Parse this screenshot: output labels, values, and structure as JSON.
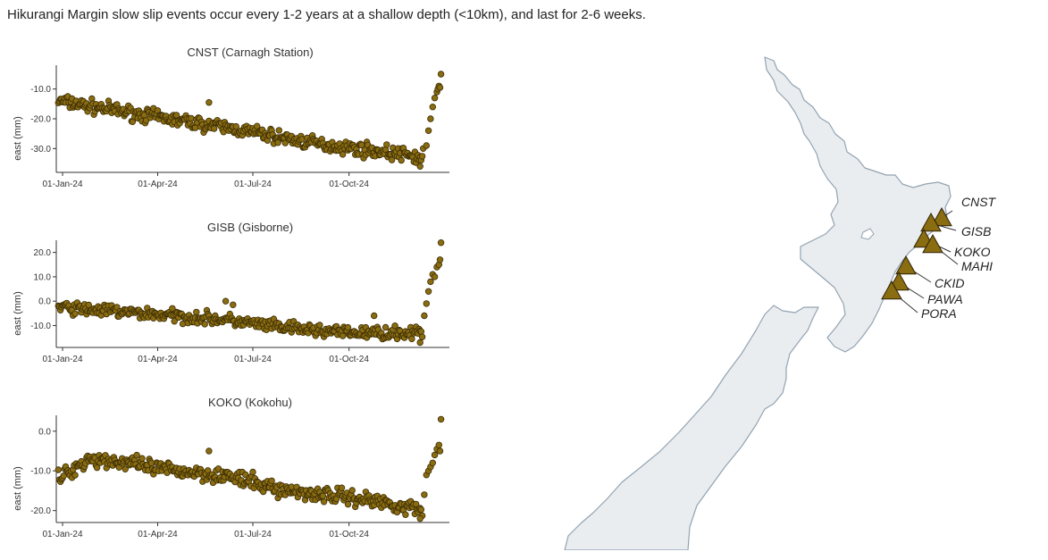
{
  "headline": "Hikurangi Margin slow slip events occur every 1-2 years at a shallow depth (<10km), and last for 2-6 weeks.",
  "colors": {
    "marker_fill": "#8a6c11",
    "marker_stroke": "#3b2d05",
    "axis": "#333333",
    "land_fill": "#e9edf0",
    "land_stroke": "#93a3b1",
    "station_fill": "#8a6c11"
  },
  "chart_data": [
    {
      "type": "scatter",
      "title": "CNST (Carnagh Station)",
      "ylabel": "east (mm)",
      "xlim": [
        "2023-12-26",
        "2025-01-05"
      ],
      "ylim": [
        -38,
        -2
      ],
      "x_ticks": [
        "01-Jan-24",
        "01-Apr-24",
        "01-Jul-24",
        "01-Oct-24"
      ],
      "y_ticks": [
        "-10.0",
        "-20.0",
        "-30.0"
      ],
      "y_tick_values": [
        -10,
        -20,
        -30
      ],
      "trend": [
        [
          "2023-12-28",
          -14
        ],
        [
          "2024-03-15",
          -18.5
        ],
        [
          "2024-06-15",
          -23.5
        ],
        [
          "2024-09-01",
          -28.5
        ],
        [
          "2024-11-01",
          -31
        ],
        [
          "2024-12-01",
          -32.5
        ],
        [
          "2024-12-10",
          -33.5
        ]
      ],
      "jump": [
        [
          "2024-12-11",
          -30
        ],
        [
          "2024-12-14",
          -29
        ],
        [
          "2024-12-16",
          -24
        ],
        [
          "2024-12-18",
          -20
        ],
        [
          "2024-12-20",
          -16
        ],
        [
          "2024-12-22",
          -13
        ],
        [
          "2024-12-24",
          -11
        ],
        [
          "2024-12-25",
          -10
        ],
        [
          "2024-12-26",
          -9
        ],
        [
          "2024-12-27",
          -9.5
        ],
        [
          "2024-12-28",
          -5
        ]
      ],
      "spread": 1.6,
      "outliers": [
        [
          "2024-05-20",
          -14.5
        ],
        [
          "2024-07-25",
          -28
        ],
        [
          "2024-12-08",
          -36
        ]
      ]
    },
    {
      "type": "scatter",
      "title": "GISB (Gisborne)",
      "ylabel": "east (mm)",
      "xlim": [
        "2023-12-26",
        "2025-01-05"
      ],
      "ylim": [
        -19,
        25
      ],
      "x_ticks": [
        "01-Jan-24",
        "01-Apr-24",
        "01-Jul-24",
        "01-Oct-24"
      ],
      "y_ticks": [
        "20.0",
        "10.0",
        "0.0",
        "-10.0"
      ],
      "y_tick_values": [
        20,
        10,
        0,
        -10
      ],
      "trend": [
        [
          "2023-12-28",
          -2.5
        ],
        [
          "2024-03-01",
          -4.5
        ],
        [
          "2024-06-01",
          -7.5
        ],
        [
          "2024-08-01",
          -11
        ],
        [
          "2024-10-01",
          -13
        ],
        [
          "2024-12-10",
          -13
        ]
      ],
      "jump": [
        [
          "2024-12-12",
          -6
        ],
        [
          "2024-12-14",
          -1
        ],
        [
          "2024-12-16",
          4
        ],
        [
          "2024-12-18",
          8
        ],
        [
          "2024-12-20",
          11
        ],
        [
          "2024-12-22",
          10
        ],
        [
          "2024-12-24",
          14
        ],
        [
          "2024-12-26",
          15
        ],
        [
          "2024-12-27",
          17
        ],
        [
          "2024-12-28",
          24
        ]
      ],
      "spread": 1.8,
      "outliers": [
        [
          "2024-06-05",
          0
        ],
        [
          "2024-06-12",
          -1.5
        ],
        [
          "2024-10-25",
          -6
        ],
        [
          "2024-12-08",
          -17
        ]
      ]
    },
    {
      "type": "scatter",
      "title": "KOKO (Kokohu)",
      "ylabel": "east (mm)",
      "xlim": [
        "2023-12-26",
        "2025-01-05"
      ],
      "ylim": [
        -23,
        4
      ],
      "x_ticks": [
        "01-Jan-24",
        "01-Apr-24",
        "01-Jul-24",
        "01-Oct-24"
      ],
      "y_ticks": [
        "0.0",
        "-10.0",
        "-20.0"
      ],
      "y_tick_values": [
        0,
        -10,
        -20
      ],
      "trend": [
        [
          "2023-12-28",
          -12
        ],
        [
          "2024-01-25",
          -7
        ],
        [
          "2024-02-20",
          -7.5
        ],
        [
          "2024-04-01",
          -9.5
        ],
        [
          "2024-06-01",
          -11
        ],
        [
          "2024-08-01",
          -15
        ],
        [
          "2024-10-01",
          -16.5
        ],
        [
          "2024-11-15",
          -18.5
        ],
        [
          "2024-12-10",
          -20
        ]
      ],
      "jump": [
        [
          "2024-12-12",
          -16
        ],
        [
          "2024-12-14",
          -11
        ],
        [
          "2024-12-16",
          -10
        ],
        [
          "2024-12-18",
          -9
        ],
        [
          "2024-12-20",
          -8
        ],
        [
          "2024-12-22",
          -6
        ],
        [
          "2024-12-24",
          -4.5
        ],
        [
          "2024-12-26",
          -3.5
        ],
        [
          "2024-12-27",
          -5
        ],
        [
          "2024-12-28",
          3
        ]
      ],
      "spread": 1.4,
      "outliers": [
        [
          "2024-05-20",
          -5
        ],
        [
          "2024-12-08",
          -22
        ]
      ]
    }
  ],
  "stations": [
    {
      "name": "CNST"
    },
    {
      "name": "GISB"
    },
    {
      "name": "KOKO"
    },
    {
      "name": "MAHI"
    },
    {
      "name": "CKID"
    },
    {
      "name": "PAWA"
    },
    {
      "name": "PORA"
    }
  ]
}
